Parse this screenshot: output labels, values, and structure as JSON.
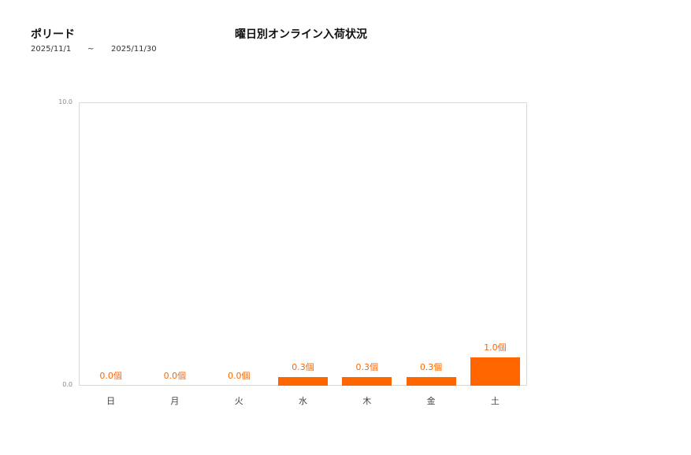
{
  "header": {
    "store_name": "ポリード",
    "date_from": "2025/11/1",
    "date_sep": "~",
    "date_to": "2025/11/30"
  },
  "chart_data": {
    "type": "bar",
    "title": "曜日別オンライン入荷状況",
    "xlabel": "",
    "ylabel": "",
    "categories": [
      "日",
      "月",
      "火",
      "水",
      "木",
      "金",
      "土"
    ],
    "values": [
      0.0,
      0.0,
      0.0,
      0.3,
      0.3,
      0.3,
      1.0
    ],
    "value_labels": [
      "0.0個",
      "0.0個",
      "0.0個",
      "0.3個",
      "0.3個",
      "0.3個",
      "1.0個"
    ],
    "unit": "個",
    "ylim": [
      0,
      10
    ],
    "yticks": [
      "0.0",
      "10.0"
    ],
    "grid": false,
    "legend": "none",
    "bar_color": "#ff6600",
    "label_color": "#ff6600"
  }
}
